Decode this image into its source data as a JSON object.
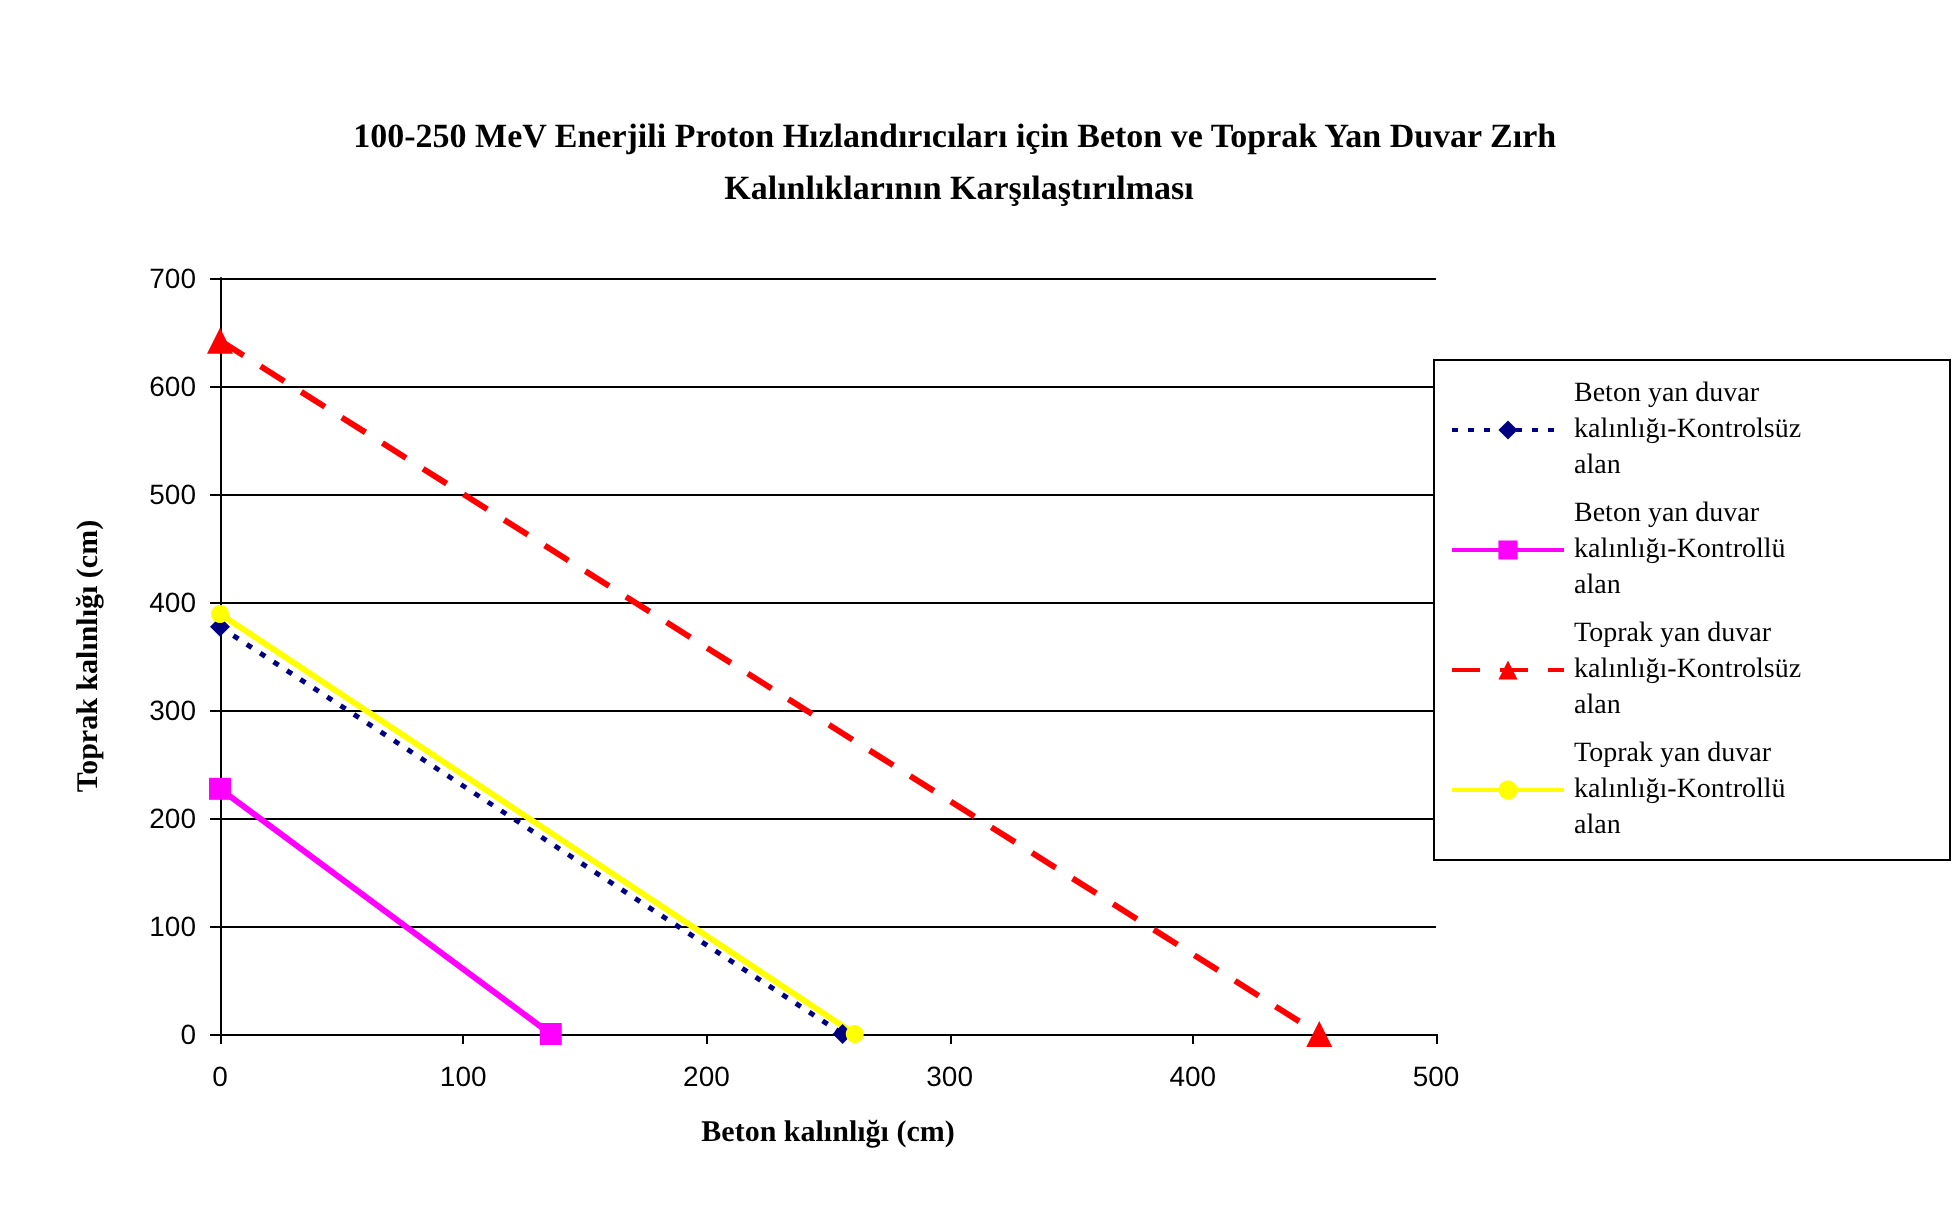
{
  "chart_data": {
    "type": "line",
    "title": "100-250 MeV Enerjili Proton Hızlandırıcıları için Beton ve Toprak Yan Duvar Zırh Kalınlıklarının Karşılaştırılması",
    "xlabel": "Beton kalınlığı (cm)",
    "ylabel": "Toprak kalınlığı (cm)",
    "series": [
      {
        "name": "Beton yan duvar kalınlığı-Kontrolsüz alan",
        "color": "#000080",
        "x": [
          0,
          256
        ],
        "values": [
          377,
          0
        ],
        "marker": "diamond",
        "line_style": "dotted"
      },
      {
        "name": "Beton yan duvar kalınlığı-Kontrollü alan",
        "color": "#ff00ff",
        "x": [
          0,
          136
        ],
        "values": [
          227,
          0
        ],
        "marker": "square",
        "line_style": "solid"
      },
      {
        "name": "Toprak yan duvar kalınlığı-Kontrolsüz alan",
        "color": "#ff0000",
        "x": [
          0,
          452
        ],
        "values": [
          642,
          0
        ],
        "marker": "triangle",
        "line_style": "dashed"
      },
      {
        "name": "Toprak yan duvar kalınlığı-Kontrollü alan",
        "color": "#ffff00",
        "x": [
          0,
          261
        ],
        "values": [
          389,
          0
        ],
        "marker": "circle",
        "line_style": "solid"
      }
    ],
    "xlim": [
      0,
      500
    ],
    "xticks": [
      0,
      100,
      200,
      300,
      400,
      500
    ],
    "ylim": [
      0,
      700
    ],
    "yticks": [
      0,
      100,
      200,
      300,
      400,
      500,
      600,
      700
    ],
    "grid": "y",
    "legend": "right"
  }
}
